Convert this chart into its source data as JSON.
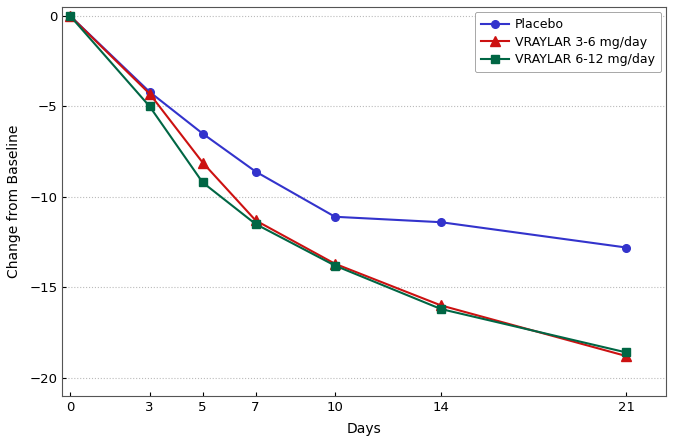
{
  "days": [
    0,
    3,
    5,
    7,
    10,
    14,
    21
  ],
  "placebo": [
    0,
    -4.2,
    -6.5,
    -8.6,
    -11.1,
    -11.4,
    -12.8
  ],
  "vraylar_low": [
    0,
    -4.3,
    -8.1,
    -11.3,
    -13.7,
    -16.0,
    -18.8
  ],
  "vraylar_high": [
    0,
    -5.0,
    -9.2,
    -11.5,
    -13.8,
    -16.2,
    -18.6
  ],
  "placebo_color": "#3333cc",
  "vraylar_low_color": "#cc1111",
  "vraylar_high_color": "#006644",
  "xlabel": "Days",
  "ylabel": "Change from Baseline",
  "ylim": [
    -21,
    0.5
  ],
  "xlim": [
    -0.3,
    22.5
  ],
  "yticks": [
    0,
    -5,
    -10,
    -15,
    -20
  ],
  "xticks": [
    0,
    3,
    5,
    7,
    10,
    14,
    21
  ],
  "legend_placebo": "Placebo",
  "legend_low": "VRAYLAR 3-6 mg/day",
  "legend_high": "VRAYLAR 6-12 mg/day",
  "background_color": "#ffffff",
  "grid_color": "#bbbbbb"
}
